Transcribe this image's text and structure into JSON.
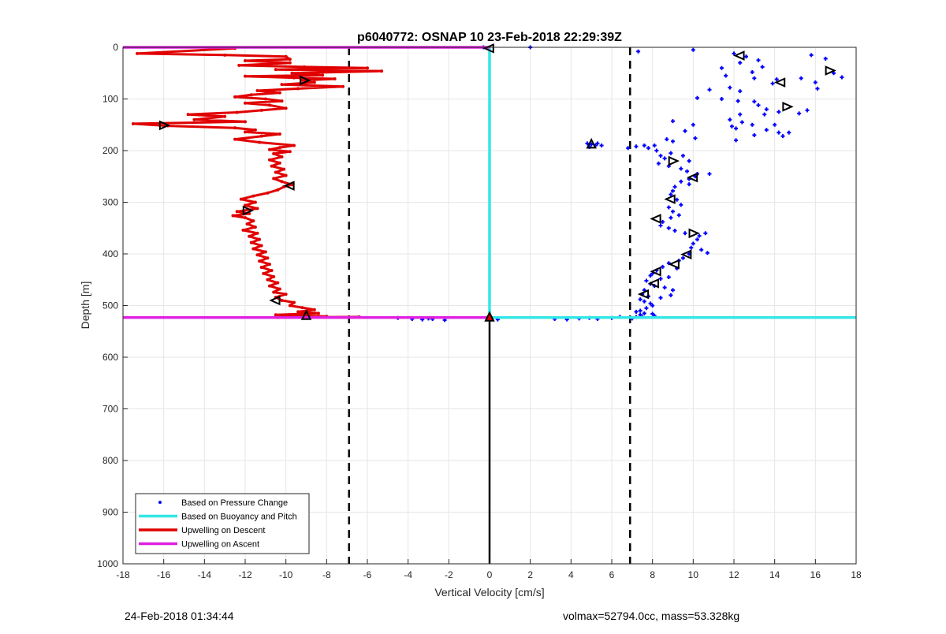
{
  "chart_data": {
    "type": "scatter",
    "title": "p6040772: OSNAP 10 23-Feb-2018 22:29:39Z",
    "xlabel": "Vertical Velocity [cm/s]",
    "ylabel": "Depth [m]",
    "xlim": [
      -18,
      18
    ],
    "ylim": [
      0,
      1000
    ],
    "y_reversed": true,
    "grid": true,
    "x_ticks": [
      -18,
      -16,
      -14,
      -12,
      -10,
      -8,
      -6,
      -4,
      -2,
      0,
      2,
      4,
      6,
      8,
      10,
      12,
      14,
      16,
      18
    ],
    "y_ticks": [
      0,
      100,
      200,
      300,
      400,
      500,
      600,
      700,
      800,
      900,
      1000
    ],
    "legend_position": "bottom-left",
    "legend": [
      {
        "label": "Based on Pressure Change",
        "style": "dots",
        "color": "#0000ff"
      },
      {
        "label": "Based on Buoyancy and Pitch",
        "style": "line",
        "color": "#33e6e6"
      },
      {
        "label": "Upwelling on Descent",
        "style": "line",
        "color": "#e00000"
      },
      {
        "label": "Upwelling on Ascent",
        "style": "line",
        "color": "#e020e0"
      }
    ],
    "reference_lines": {
      "dashed_x": [
        -6.9,
        6.9
      ],
      "solid_x": 0
    },
    "series": [
      {
        "name": "Based on Pressure Change",
        "type": "scatter",
        "color": "#0000ff",
        "points": [
          [
            2.0,
            0
          ],
          [
            7.3,
            8
          ],
          [
            10.0,
            5
          ],
          [
            12.0,
            12
          ],
          [
            12.6,
            18
          ],
          [
            13.2,
            25
          ],
          [
            12.3,
            30
          ],
          [
            15.8,
            15
          ],
          [
            16.5,
            22
          ],
          [
            11.4,
            40
          ],
          [
            13.4,
            38
          ],
          [
            12.9,
            48
          ],
          [
            11.6,
            55
          ],
          [
            13.0,
            60
          ],
          [
            15.3,
            60
          ],
          [
            16.1,
            80
          ],
          [
            16.9,
            50
          ],
          [
            17.3,
            58
          ],
          [
            13.9,
            70
          ],
          [
            16.0,
            68
          ],
          [
            14.1,
            62
          ],
          [
            10.8,
            82
          ],
          [
            11.8,
            78
          ],
          [
            12.3,
            85
          ],
          [
            10.2,
            98
          ],
          [
            11.4,
            100
          ],
          [
            12.2,
            104
          ],
          [
            13.0,
            105
          ],
          [
            13.2,
            112
          ],
          [
            13.6,
            120
          ],
          [
            14.2,
            125
          ],
          [
            15.2,
            128
          ],
          [
            15.6,
            122
          ],
          [
            13.5,
            130
          ],
          [
            12.3,
            130
          ],
          [
            11.8,
            140
          ],
          [
            12.4,
            145
          ],
          [
            9.0,
            143
          ],
          [
            10.0,
            150
          ],
          [
            11.9,
            153
          ],
          [
            12.1,
            157
          ],
          [
            12.9,
            150
          ],
          [
            14.0,
            150
          ],
          [
            13.6,
            160
          ],
          [
            14.2,
            165
          ],
          [
            14.7,
            165
          ],
          [
            14.4,
            172
          ],
          [
            13.0,
            170
          ],
          [
            9.6,
            162
          ],
          [
            10.1,
            176
          ],
          [
            12.1,
            180
          ],
          [
            8.7,
            178
          ],
          [
            9.0,
            182
          ],
          [
            6.8,
            195
          ],
          [
            7.2,
            192
          ],
          [
            8.1,
            190
          ],
          [
            7.6,
            190
          ],
          [
            7.8,
            195
          ],
          [
            8.2,
            200
          ],
          [
            8.4,
            210
          ],
          [
            8.9,
            205
          ],
          [
            9.5,
            210
          ],
          [
            8.6,
            215
          ],
          [
            9.8,
            220
          ],
          [
            8.3,
            225
          ],
          [
            8.8,
            230
          ],
          [
            9.4,
            235
          ],
          [
            9.7,
            240
          ],
          [
            10.2,
            245
          ],
          [
            10.8,
            245
          ],
          [
            10.1,
            250
          ],
          [
            9.8,
            255
          ],
          [
            9.4,
            260
          ],
          [
            9.8,
            265
          ],
          [
            9.1,
            270
          ],
          [
            9.0,
            278
          ],
          [
            8.9,
            285
          ],
          [
            9.2,
            295
          ],
          [
            9.4,
            305
          ],
          [
            8.8,
            310
          ],
          [
            9.0,
            318
          ],
          [
            9.3,
            325
          ],
          [
            8.9,
            330
          ],
          [
            8.5,
            338
          ],
          [
            8.4,
            345
          ],
          [
            8.8,
            350
          ],
          [
            9.1,
            355
          ],
          [
            9.6,
            360
          ],
          [
            10.3,
            365
          ],
          [
            10.6,
            360
          ],
          [
            10.2,
            372
          ],
          [
            10.0,
            380
          ],
          [
            9.9,
            388
          ],
          [
            10.4,
            392
          ],
          [
            10.7,
            398
          ],
          [
            9.8,
            400
          ],
          [
            9.5,
            408
          ],
          [
            9.3,
            413
          ],
          [
            8.8,
            418
          ],
          [
            8.5,
            425
          ],
          [
            9.2,
            428
          ],
          [
            8.2,
            432
          ],
          [
            8.0,
            438
          ],
          [
            7.9,
            442
          ],
          [
            8.4,
            448
          ],
          [
            8.8,
            445
          ],
          [
            7.7,
            452
          ],
          [
            7.9,
            458
          ],
          [
            8.1,
            462
          ],
          [
            8.6,
            465
          ],
          [
            9.0,
            470
          ],
          [
            7.6,
            470
          ],
          [
            7.5,
            478
          ],
          [
            7.8,
            482
          ],
          [
            8.4,
            485
          ],
          [
            8.9,
            480
          ],
          [
            7.4,
            488
          ],
          [
            7.6,
            492
          ],
          [
            7.9,
            496
          ],
          [
            8.0,
            500
          ],
          [
            7.7,
            505
          ],
          [
            7.4,
            510
          ],
          [
            7.2,
            512
          ],
          [
            7.6,
            515
          ],
          [
            8.0,
            516
          ],
          [
            8.1,
            520
          ],
          [
            7.4,
            518
          ],
          [
            7.5,
            522
          ],
          [
            4.8,
            186
          ],
          [
            5.0,
            188
          ],
          [
            5.2,
            190
          ],
          [
            5.5,
            190
          ],
          [
            4.9,
            193
          ],
          [
            5.3,
            186
          ],
          [
            -4.5,
            524
          ],
          [
            -3.8,
            526
          ],
          [
            -3.3,
            527
          ],
          [
            -3.0,
            525
          ],
          [
            -2.8,
            526
          ],
          [
            -2.2,
            528
          ],
          [
            0.4,
            527
          ],
          [
            3.2,
            526
          ],
          [
            3.8,
            527
          ],
          [
            4.4,
            525
          ],
          [
            4.9,
            524
          ],
          [
            5.3,
            526
          ],
          [
            6.0,
            524
          ],
          [
            6.4,
            522
          ],
          [
            7.0,
            525
          ],
          [
            7.2,
            522
          ],
          [
            -0.3,
            0
          ]
        ]
      },
      {
        "name": "Based on Buoyancy and Pitch",
        "type": "line",
        "color": "#33e6e6",
        "segments": [
          [
            [
              0.0,
              0
            ],
            [
              0.0,
              523
            ]
          ],
          [
            [
              0.0,
              523
            ],
            [
              18.0,
              523
            ]
          ]
        ]
      },
      {
        "name": "Upwelling on Descent",
        "type": "line",
        "color": "#e00000",
        "points": [
          [
            -12.5,
            2
          ],
          [
            -17.3,
            12
          ],
          [
            -13.0,
            15
          ],
          [
            -10.0,
            18
          ],
          [
            -9.8,
            23
          ],
          [
            -12.0,
            26
          ],
          [
            -9.8,
            30
          ],
          [
            -12.3,
            35
          ],
          [
            -9.1,
            38
          ],
          [
            -6.0,
            40
          ],
          [
            -10.5,
            43
          ],
          [
            -5.3,
            46
          ],
          [
            -9.7,
            50
          ],
          [
            -8.2,
            54
          ],
          [
            -12.0,
            56
          ],
          [
            -9.6,
            59
          ],
          [
            -7.6,
            61
          ],
          [
            -9.2,
            64
          ],
          [
            -8.6,
            68
          ],
          [
            -10.2,
            72
          ],
          [
            -7.2,
            76
          ],
          [
            -9.4,
            80
          ],
          [
            -11.4,
            84
          ],
          [
            -10.3,
            88
          ],
          [
            -11.7,
            92
          ],
          [
            -12.5,
            96
          ],
          [
            -11.0,
            100
          ],
          [
            -10.2,
            104
          ],
          [
            -12.0,
            108
          ],
          [
            -10.8,
            112
          ],
          [
            -10.0,
            118
          ],
          [
            -11.2,
            122
          ],
          [
            -12.4,
            126
          ],
          [
            -14.8,
            130
          ],
          [
            -13.0,
            134
          ],
          [
            -14.5,
            140
          ],
          [
            -12.0,
            144
          ],
          [
            -17.5,
            148
          ],
          [
            -15.8,
            152
          ],
          [
            -12.5,
            156
          ],
          [
            -11.5,
            160
          ],
          [
            -12.0,
            164
          ],
          [
            -10.3,
            168
          ],
          [
            -11.2,
            172
          ],
          [
            -12.5,
            178
          ],
          [
            -11.3,
            184
          ],
          [
            -9.6,
            190
          ],
          [
            -10.3,
            194
          ],
          [
            -10.8,
            198
          ],
          [
            -9.8,
            202
          ],
          [
            -10.6,
            206
          ],
          [
            -10.2,
            212
          ],
          [
            -10.8,
            218
          ],
          [
            -10.3,
            224
          ],
          [
            -10.7,
            230
          ],
          [
            -10.1,
            236
          ],
          [
            -10.5,
            242
          ],
          [
            -10.0,
            248
          ],
          [
            -10.6,
            254
          ],
          [
            -10.2,
            260
          ],
          [
            -9.7,
            266
          ],
          [
            -10.1,
            270
          ],
          [
            -10.4,
            276
          ],
          [
            -10.9,
            282
          ],
          [
            -11.6,
            288
          ],
          [
            -12.2,
            294
          ],
          [
            -11.5,
            300
          ],
          [
            -12.0,
            306
          ],
          [
            -11.4,
            312
          ],
          [
            -12.4,
            318
          ],
          [
            -11.8,
            322
          ],
          [
            -12.6,
            326
          ],
          [
            -12.0,
            330
          ],
          [
            -11.6,
            336
          ],
          [
            -11.9,
            342
          ],
          [
            -11.5,
            348
          ],
          [
            -12.1,
            354
          ],
          [
            -11.4,
            360
          ],
          [
            -11.8,
            366
          ],
          [
            -11.3,
            372
          ],
          [
            -11.7,
            378
          ],
          [
            -11.2,
            384
          ],
          [
            -11.6,
            390
          ],
          [
            -11.0,
            396
          ],
          [
            -11.4,
            402
          ],
          [
            -10.9,
            408
          ],
          [
            -11.3,
            414
          ],
          [
            -10.8,
            420
          ],
          [
            -11.2,
            426
          ],
          [
            -10.7,
            432
          ],
          [
            -11.1,
            438
          ],
          [
            -10.6,
            444
          ],
          [
            -10.9,
            450
          ],
          [
            -10.4,
            456
          ],
          [
            -10.8,
            462
          ],
          [
            -10.3,
            468
          ],
          [
            -10.6,
            474
          ],
          [
            -10.0,
            478
          ],
          [
            -10.5,
            484
          ],
          [
            -10.2,
            490
          ],
          [
            -9.6,
            494
          ],
          [
            -9.8,
            500
          ],
          [
            -9.2,
            504
          ],
          [
            -8.6,
            508
          ],
          [
            -9.4,
            512
          ],
          [
            -8.4,
            515
          ],
          [
            -10.5,
            518
          ],
          [
            -9.0,
            520
          ],
          [
            -8.0,
            521
          ],
          [
            -10.4,
            523
          ],
          [
            -6.4,
            522
          ]
        ]
      },
      {
        "name": "Upwelling on Ascent",
        "type": "line",
        "color": "#e020e0",
        "segments": [
          [
            [
              -18.0,
              0
            ],
            [
              0.0,
              0
            ]
          ],
          [
            [
              -18.0,
              523
            ],
            [
              0.0,
              523
            ]
          ]
        ]
      }
    ],
    "markers": [
      {
        "kind": "triangle-left",
        "x": 0.0,
        "y": 2
      },
      {
        "kind": "triangle-left",
        "x": 12.3,
        "y": 16
      },
      {
        "kind": "triangle-right",
        "x": 16.7,
        "y": 45
      },
      {
        "kind": "triangle-left",
        "x": 14.3,
        "y": 68
      },
      {
        "kind": "triangle-right",
        "x": 14.6,
        "y": 115
      },
      {
        "kind": "triangle-right",
        "x": -9.1,
        "y": 64
      },
      {
        "kind": "triangle-right",
        "x": -16.0,
        "y": 151
      },
      {
        "kind": "triangle-up",
        "x": 5.0,
        "y": 188
      },
      {
        "kind": "triangle-right",
        "x": 9.0,
        "y": 220
      },
      {
        "kind": "triangle-left",
        "x": 10.0,
        "y": 252
      },
      {
        "kind": "triangle-left",
        "x": -9.8,
        "y": 268
      },
      {
        "kind": "triangle-left",
        "x": 8.9,
        "y": 294
      },
      {
        "kind": "triangle-right",
        "x": -11.9,
        "y": 316
      },
      {
        "kind": "triangle-left",
        "x": 8.2,
        "y": 332
      },
      {
        "kind": "triangle-right",
        "x": 10.0,
        "y": 360
      },
      {
        "kind": "triangle-left",
        "x": 9.7,
        "y": 401
      },
      {
        "kind": "triangle-left",
        "x": 9.1,
        "y": 420
      },
      {
        "kind": "triangle-left",
        "x": 8.2,
        "y": 434
      },
      {
        "kind": "triangle-left",
        "x": 8.1,
        "y": 457
      },
      {
        "kind": "triangle-left",
        "x": 7.6,
        "y": 478
      },
      {
        "kind": "triangle-left",
        "x": -10.5,
        "y": 490
      },
      {
        "kind": "triangle-up",
        "x": -9.0,
        "y": 520
      },
      {
        "kind": "triangle-up",
        "x": 0.0,
        "y": 523,
        "fill": "#e00000"
      }
    ]
  },
  "footer": {
    "left": "24-Feb-2018 01:34:44",
    "right": "volmax=52794.0cc, mass=53.328kg"
  }
}
